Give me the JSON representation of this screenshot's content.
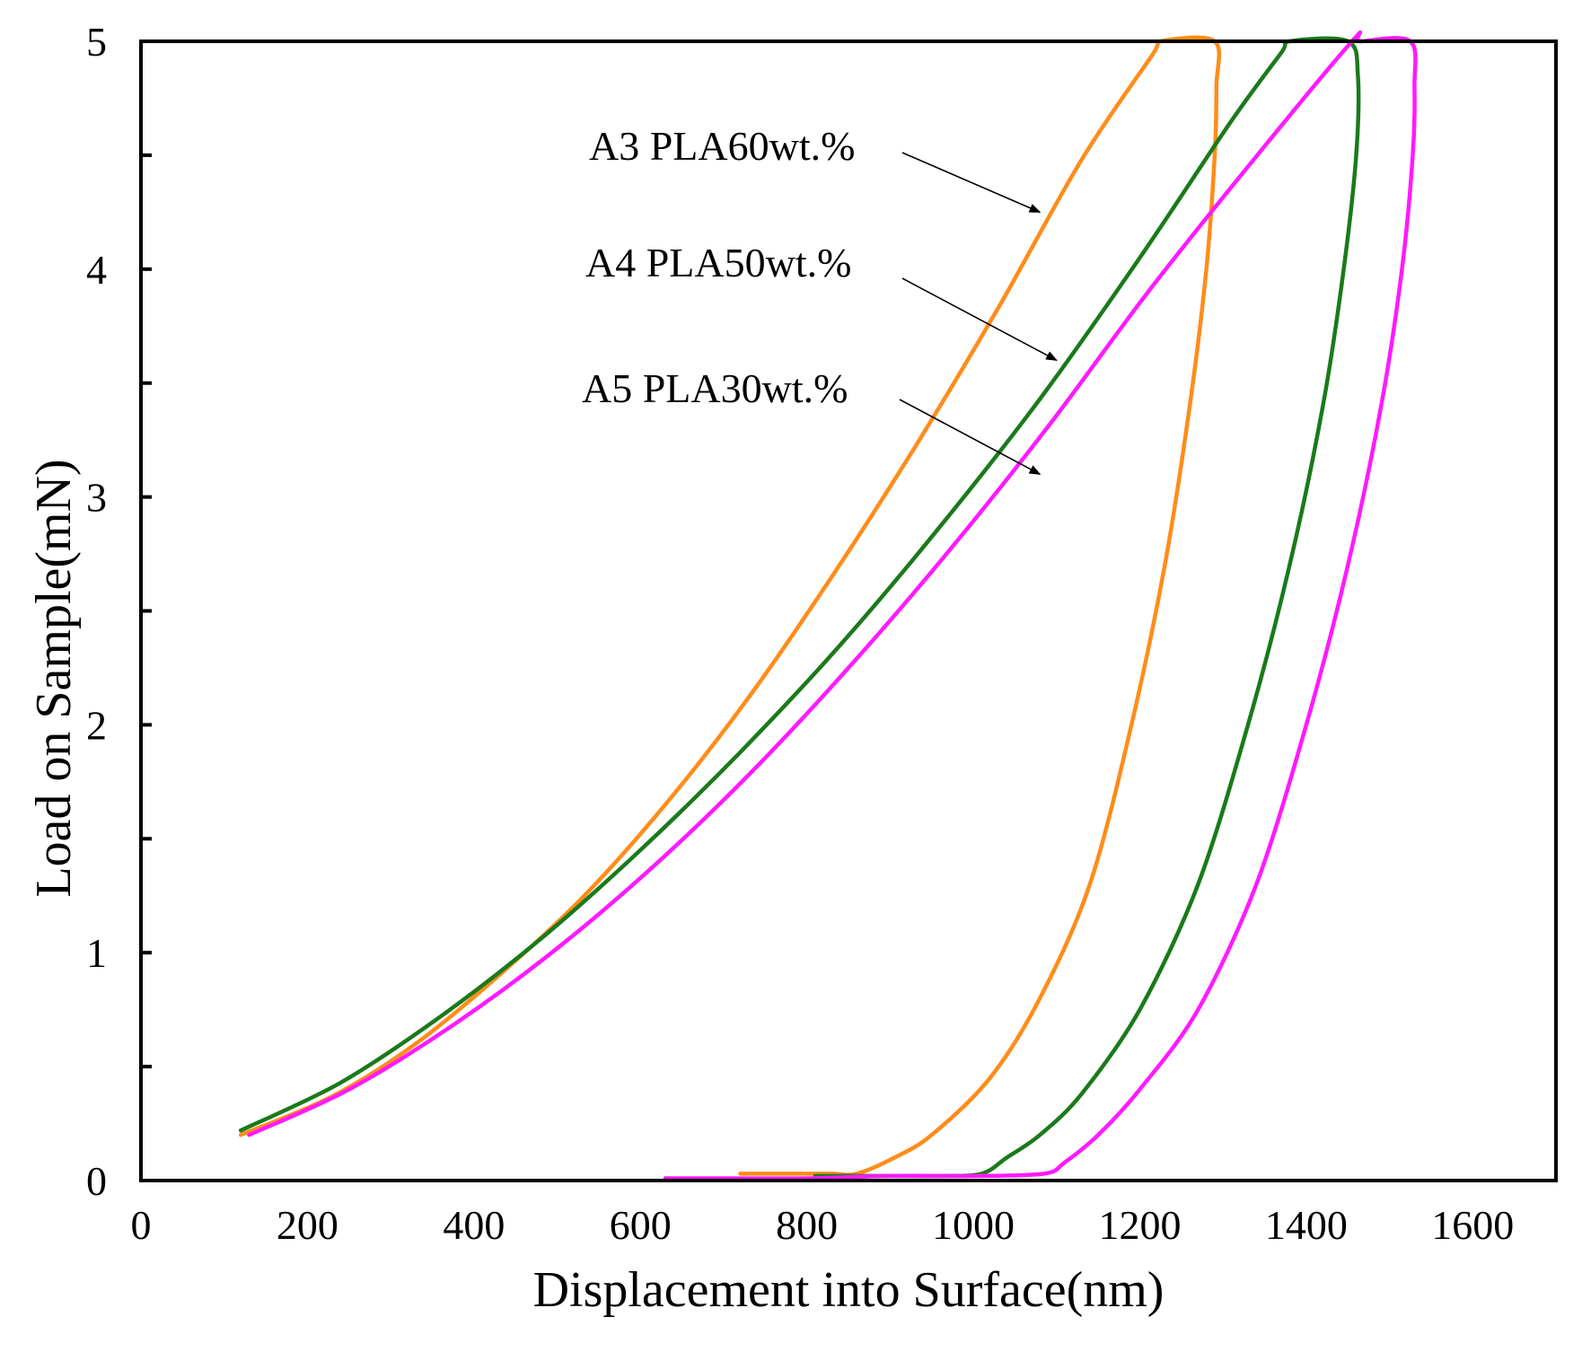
{
  "chart_data": {
    "type": "line",
    "title": "",
    "xlabel": "Displacement into Surface(nm)",
    "ylabel": "Load on Sample(mN)",
    "xlim": [
      0,
      1700
    ],
    "ylim": [
      0,
      5
    ],
    "x_ticks": [
      0,
      200,
      400,
      600,
      800,
      1000,
      1200,
      1400,
      1600
    ],
    "x_tick_labels": [
      "0",
      "200",
      "400",
      "600",
      "800",
      "1000",
      "1200",
      "1400",
      "1600"
    ],
    "y_ticks": [
      0,
      1,
      2,
      3,
      4,
      5
    ],
    "y_tick_labels": [
      "0",
      "1",
      "2",
      "3",
      "4",
      "5"
    ],
    "y_minor_ticks": [
      0.5,
      1.5,
      2.5,
      3.5,
      4.5
    ],
    "grid": false,
    "legend": "none",
    "series": [
      {
        "name": "A3 PLA60wt.%",
        "color": "#FF8C1A",
        "x": [
          120,
          230,
          330,
          430,
          530,
          630,
          730,
          830,
          930,
          1030,
          1130,
          1215,
          1225,
          1290,
          1292,
          1290,
          1280,
          1260,
          1230,
          1190,
          1140,
          1080,
          1020,
          950,
          905,
          860,
          830,
          800,
          770,
          720
        ],
        "y": [
          0.2,
          0.37,
          0.6,
          0.9,
          1.24,
          1.65,
          2.12,
          2.65,
          3.22,
          3.83,
          4.48,
          4.94,
          5.0,
          5.0,
          4.8,
          4.5,
          4.0,
          3.4,
          2.7,
          2.0,
          1.3,
          0.8,
          0.45,
          0.2,
          0.1,
          0.03,
          0.03,
          0.03,
          0.03,
          0.03
        ]
      },
      {
        "name": "A4 PLA50wt.%",
        "color": "#1A7A1A",
        "x": [
          120,
          240,
          360,
          480,
          600,
          720,
          840,
          960,
          1080,
          1200,
          1310,
          1370,
          1380,
          1450,
          1462,
          1460,
          1445,
          1420,
          1380,
          1330,
          1270,
          1200,
          1130,
          1080,
          1040,
          1010,
          960,
          900,
          840,
          810
        ],
        "y": [
          0.22,
          0.43,
          0.72,
          1.06,
          1.45,
          1.88,
          2.35,
          2.87,
          3.43,
          4.05,
          4.65,
          4.95,
          5.0,
          5.0,
          4.85,
          4.5,
          4.0,
          3.4,
          2.7,
          2.0,
          1.3,
          0.75,
          0.38,
          0.2,
          0.1,
          0.03,
          0.02,
          0.02,
          0.02,
          0.02
        ]
      },
      {
        "name": "A5 PLA30wt.%",
        "color": "#FF1AFF",
        "x": [
          130,
          250,
          370,
          490,
          610,
          730,
          850,
          970,
          1090,
          1210,
          1330,
          1455,
          1465,
          1525,
          1530,
          1528,
          1515,
          1490,
          1450,
          1400,
          1340,
          1270,
          1200,
          1150,
          1110,
          1085,
          1000,
          900,
          800,
          700,
          630
        ],
        "y": [
          0.2,
          0.4,
          0.67,
          0.99,
          1.36,
          1.78,
          2.25,
          2.76,
          3.31,
          3.9,
          4.45,
          5.0,
          5.0,
          5.0,
          4.8,
          4.5,
          4.0,
          3.4,
          2.7,
          2.0,
          1.3,
          0.75,
          0.4,
          0.2,
          0.08,
          0.03,
          0.02,
          0.02,
          0.01,
          0.01,
          0.01
        ]
      }
    ],
    "annotations": [
      {
        "text": "A3 PLA60wt.%",
        "arrow_to": [
          1080,
          4.25
        ],
        "color": "#000000"
      },
      {
        "text": "A4 PLA50wt.%",
        "arrow_to": [
          1100,
          3.6
        ],
        "color": "#000000"
      },
      {
        "text": "A5 PLA30wt.%",
        "arrow_to": [
          1080,
          3.1
        ],
        "color": "#000000"
      }
    ]
  }
}
